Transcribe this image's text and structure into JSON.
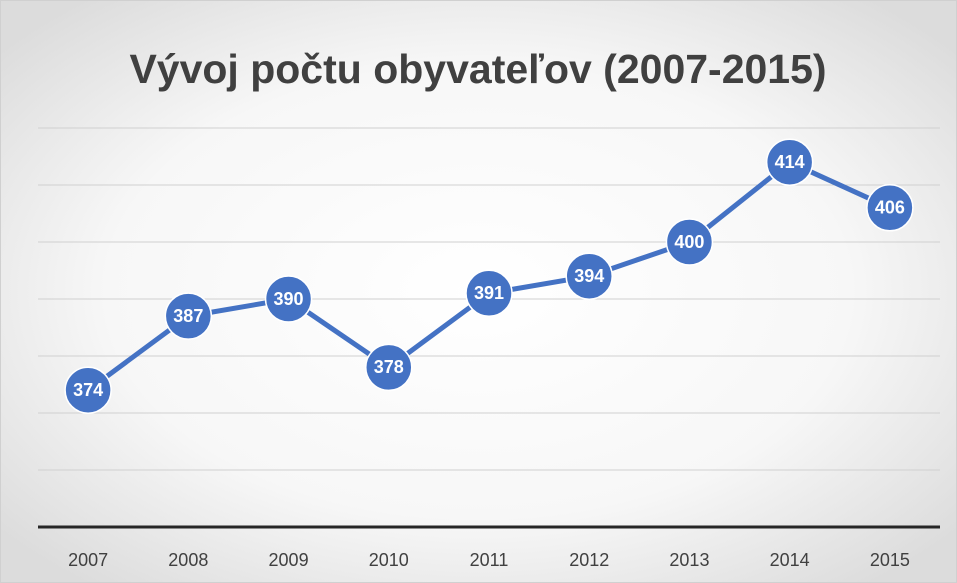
{
  "chart_data": {
    "type": "line",
    "title": "Vývoj počtu obyvateľov (2007-2015)",
    "categories": [
      "2007",
      "2008",
      "2009",
      "2010",
      "2011",
      "2012",
      "2013",
      "2014",
      "2015"
    ],
    "values": [
      374,
      387,
      390,
      378,
      391,
      394,
      400,
      414,
      406
    ],
    "color": "#4472c4",
    "ylim": [
      350,
      420
    ],
    "yticks": [
      350,
      360,
      370,
      380,
      390,
      400,
      410,
      420
    ],
    "grid": true
  }
}
